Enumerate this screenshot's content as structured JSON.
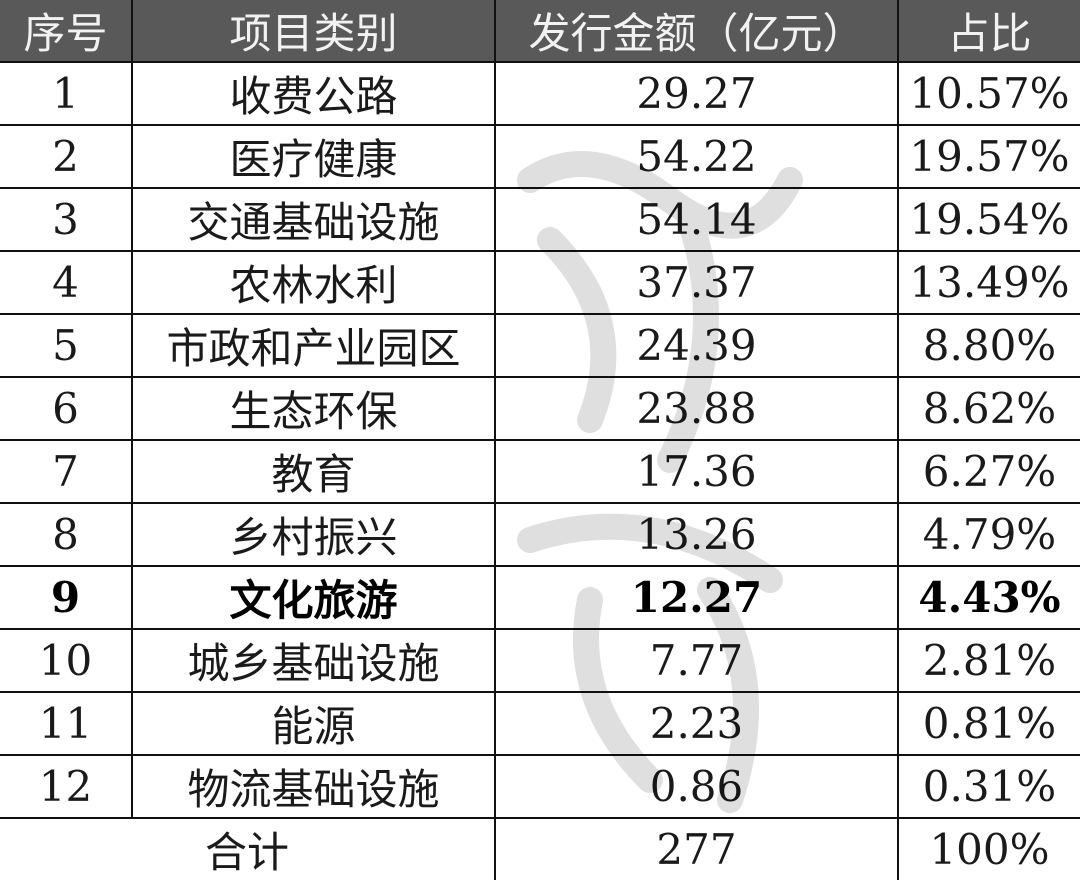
{
  "headers": [
    "序号",
    "项目类别",
    "发行金额（亿元）",
    "占比"
  ],
  "rows": [
    {
      "no": "1",
      "category": "收费公路",
      "amount": "29.27",
      "share": "10.57%"
    },
    {
      "no": "2",
      "category": "医疗健康",
      "amount": "54.22",
      "share": "19.57%"
    },
    {
      "no": "3",
      "category": "交通基础设施",
      "amount": "54.14",
      "share": "19.54%"
    },
    {
      "no": "4",
      "category": "农林水利",
      "amount": "37.37",
      "share": "13.49%"
    },
    {
      "no": "5",
      "category": "市政和产业园区",
      "amount": "24.39",
      "share": "8.80%"
    },
    {
      "no": "6",
      "category": "生态环保",
      "amount": "23.88",
      "share": "8.62%"
    },
    {
      "no": "7",
      "category": "教育",
      "amount": "17.36",
      "share": "6.27%"
    },
    {
      "no": "8",
      "category": "乡村振兴",
      "amount": "13.26",
      "share": "4.79%"
    },
    {
      "no": "9",
      "category": "文化旅游",
      "amount": "12.27",
      "share": "4.43%",
      "highlight": true
    },
    {
      "no": "10",
      "category": "城乡基础设施",
      "amount": "7.77",
      "share": "2.81%"
    },
    {
      "no": "11",
      "category": "能源",
      "amount": "2.23",
      "share": "0.81%"
    },
    {
      "no": "12",
      "category": "物流基础设施",
      "amount": "0.86",
      "share": "0.31%"
    }
  ],
  "total": {
    "label": "合计",
    "amount": "277",
    "share": "100%"
  },
  "colors": {
    "header_bg": "#595959",
    "header_text": "#f2f2f2",
    "border": "#111111"
  }
}
